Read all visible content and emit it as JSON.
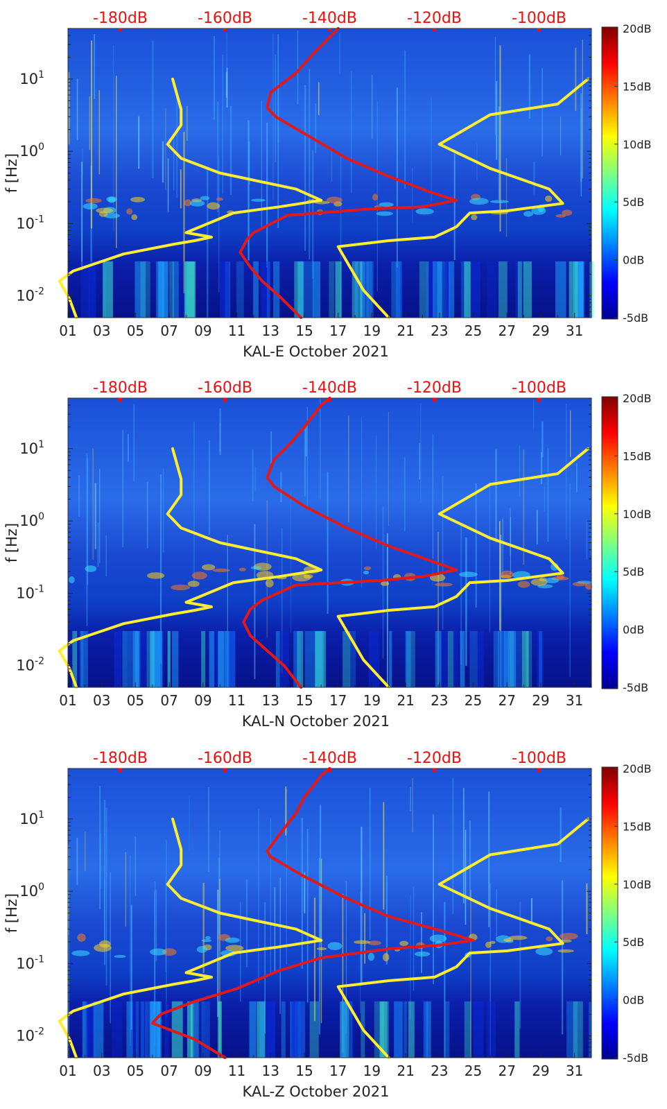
{
  "figure": {
    "y_label": "f [Hz]",
    "colorbar": {
      "labels": [
        "20dB",
        "15dB",
        "10dB",
        "5dB",
        "0dB",
        "-5dB"
      ],
      "range_db": [
        -5,
        20
      ]
    },
    "top_db_labels": [
      "-180dB",
      "-160dB",
      "-140dB",
      "-120dB",
      "-100dB"
    ],
    "x_tick_labels": [
      "01",
      "03",
      "05",
      "07",
      "09",
      "11",
      "13",
      "15",
      "17",
      "19",
      "21",
      "23",
      "25",
      "27",
      "29",
      "31"
    ],
    "y_tick_labels": [
      "10^1",
      "10^0",
      "10^-1",
      "10^-2"
    ]
  },
  "chart_data": [
    {
      "type": "heatmap",
      "title": "KAL-E October 2021",
      "xlabel": "KAL-E October 2021",
      "ylabel": "f [Hz]",
      "xlim_days": [
        1,
        32
      ],
      "ylim_hz": [
        0.005,
        50
      ],
      "yscale": "log",
      "top_axis_db": [
        -180,
        -160,
        -140,
        -120,
        -100
      ],
      "colorbar_db": [
        -5,
        20
      ],
      "overlays": [
        {
          "name": "low-noise-model",
          "color": "#ffee30",
          "points": [
            [
              1.5,
              0.005
            ],
            [
              1.1,
              0.009
            ],
            [
              0.5,
              0.016
            ],
            [
              1.3,
              0.022
            ],
            [
              4.3,
              0.038
            ],
            [
              7.3,
              0.052
            ],
            [
              8.5,
              0.058
            ],
            [
              9.5,
              0.065
            ],
            [
              8.0,
              0.075
            ],
            [
              10.8,
              0.14
            ],
            [
              13.5,
              0.17
            ],
            [
              16.0,
              0.21
            ],
            [
              14.5,
              0.3
            ],
            [
              10.0,
              0.5
            ],
            [
              7.7,
              0.8
            ],
            [
              6.9,
              1.25
            ],
            [
              7.7,
              2.3
            ],
            [
              7.7,
              3.8
            ],
            [
              7.2,
              10.0
            ]
          ]
        },
        {
          "name": "high-noise-model",
          "color": "#ffee30",
          "points": [
            [
              20.0,
              0.005
            ],
            [
              18.5,
              0.012
            ],
            [
              17.0,
              0.048
            ],
            [
              20.0,
              0.058
            ],
            [
              22.7,
              0.065
            ],
            [
              24.0,
              0.09
            ],
            [
              24.8,
              0.14
            ],
            [
              27.0,
              0.15
            ],
            [
              30.3,
              0.19
            ],
            [
              29.5,
              0.3
            ],
            [
              26.0,
              0.58
            ],
            [
              23.0,
              1.25
            ],
            [
              26.0,
              3.2
            ],
            [
              30.0,
              4.5
            ],
            [
              31.8,
              10.0
            ]
          ]
        },
        {
          "name": "median-noise-level",
          "color": "#e01a1a",
          "points": [
            [
              14.8,
              0.005
            ],
            [
              13.5,
              0.01
            ],
            [
              12.5,
              0.016
            ],
            [
              11.8,
              0.025
            ],
            [
              11.2,
              0.04
            ],
            [
              11.6,
              0.06
            ],
            [
              12.0,
              0.075
            ],
            [
              14.0,
              0.13
            ],
            [
              19.0,
              0.16
            ],
            [
              22.0,
              0.17
            ],
            [
              24.0,
              0.21
            ],
            [
              22.5,
              0.27
            ],
            [
              20.0,
              0.45
            ],
            [
              17.5,
              0.8
            ],
            [
              15.3,
              1.6
            ],
            [
              13.3,
              3.0
            ],
            [
              12.8,
              4.0
            ],
            [
              13.0,
              6.5
            ],
            [
              14.5,
              12.0
            ],
            [
              15.5,
              22.0
            ],
            [
              16.6,
              40.0
            ],
            [
              17.0,
              50.0
            ]
          ]
        }
      ]
    },
    {
      "type": "heatmap",
      "title": "KAL-N October 2021",
      "xlabel": "KAL-N October 2021",
      "ylabel": "f [Hz]",
      "xlim_days": [
        1,
        32
      ],
      "ylim_hz": [
        0.005,
        50
      ],
      "yscale": "log",
      "top_axis_db": [
        -180,
        -160,
        -140,
        -120,
        -100
      ],
      "colorbar_db": [
        -5,
        20
      ],
      "overlays": [
        {
          "name": "low-noise-model",
          "color": "#ffee30",
          "points": [
            [
              1.5,
              0.005
            ],
            [
              1.1,
              0.009
            ],
            [
              0.5,
              0.016
            ],
            [
              1.3,
              0.022
            ],
            [
              4.3,
              0.038
            ],
            [
              7.3,
              0.052
            ],
            [
              8.5,
              0.058
            ],
            [
              9.5,
              0.065
            ],
            [
              8.0,
              0.075
            ],
            [
              10.8,
              0.14
            ],
            [
              13.5,
              0.17
            ],
            [
              16.0,
              0.21
            ],
            [
              14.5,
              0.3
            ],
            [
              10.0,
              0.5
            ],
            [
              7.7,
              0.8
            ],
            [
              6.9,
              1.25
            ],
            [
              7.7,
              2.3
            ],
            [
              7.7,
              3.8
            ],
            [
              7.2,
              10.0
            ]
          ]
        },
        {
          "name": "high-noise-model",
          "color": "#ffee30",
          "points": [
            [
              20.0,
              0.005
            ],
            [
              18.5,
              0.012
            ],
            [
              17.0,
              0.048
            ],
            [
              20.0,
              0.058
            ],
            [
              22.7,
              0.065
            ],
            [
              24.0,
              0.09
            ],
            [
              24.8,
              0.14
            ],
            [
              27.0,
              0.15
            ],
            [
              30.3,
              0.19
            ],
            [
              29.5,
              0.3
            ],
            [
              26.0,
              0.58
            ],
            [
              23.0,
              1.25
            ],
            [
              26.0,
              3.2
            ],
            [
              30.0,
              4.5
            ],
            [
              31.8,
              10.0
            ]
          ]
        },
        {
          "name": "median-noise-level",
          "color": "#e01a1a",
          "points": [
            [
              14.8,
              0.005
            ],
            [
              13.8,
              0.01
            ],
            [
              12.8,
              0.016
            ],
            [
              11.8,
              0.026
            ],
            [
              11.4,
              0.04
            ],
            [
              11.8,
              0.06
            ],
            [
              12.5,
              0.08
            ],
            [
              14.5,
              0.13
            ],
            [
              19.5,
              0.15
            ],
            [
              22.0,
              0.17
            ],
            [
              24.0,
              0.21
            ],
            [
              22.5,
              0.28
            ],
            [
              20.0,
              0.45
            ],
            [
              17.5,
              0.8
            ],
            [
              15.0,
              1.6
            ],
            [
              13.2,
              3.0
            ],
            [
              12.8,
              4.0
            ],
            [
              13.2,
              7.0
            ],
            [
              14.2,
              12.0
            ],
            [
              15.0,
              20.0
            ],
            [
              16.0,
              40.0
            ],
            [
              16.5,
              50.0
            ]
          ]
        }
      ]
    },
    {
      "type": "heatmap",
      "title": "KAL-Z October 2021",
      "xlabel": "KAL-Z October 2021",
      "ylabel": "f [Hz]",
      "xlim_days": [
        1,
        32
      ],
      "ylim_hz": [
        0.005,
        50
      ],
      "yscale": "log",
      "top_axis_db": [
        -180,
        -160,
        -140,
        -120,
        -100
      ],
      "colorbar_db": [
        -5,
        20
      ],
      "overlays": [
        {
          "name": "low-noise-model",
          "color": "#ffee30",
          "points": [
            [
              1.5,
              0.005
            ],
            [
              1.1,
              0.009
            ],
            [
              0.5,
              0.016
            ],
            [
              1.3,
              0.022
            ],
            [
              4.3,
              0.038
            ],
            [
              7.3,
              0.052
            ],
            [
              8.5,
              0.058
            ],
            [
              9.5,
              0.065
            ],
            [
              8.0,
              0.075
            ],
            [
              10.8,
              0.14
            ],
            [
              13.5,
              0.17
            ],
            [
              16.0,
              0.21
            ],
            [
              14.5,
              0.3
            ],
            [
              10.0,
              0.5
            ],
            [
              7.7,
              0.8
            ],
            [
              6.9,
              1.25
            ],
            [
              7.7,
              2.3
            ],
            [
              7.7,
              3.8
            ],
            [
              7.2,
              10.0
            ]
          ]
        },
        {
          "name": "high-noise-model",
          "color": "#ffee30",
          "points": [
            [
              20.0,
              0.005
            ],
            [
              18.5,
              0.012
            ],
            [
              17.0,
              0.048
            ],
            [
              20.0,
              0.058
            ],
            [
              22.7,
              0.065
            ],
            [
              24.0,
              0.09
            ],
            [
              24.8,
              0.14
            ],
            [
              27.0,
              0.15
            ],
            [
              30.3,
              0.19
            ],
            [
              29.5,
              0.3
            ],
            [
              26.0,
              0.58
            ],
            [
              23.0,
              1.25
            ],
            [
              26.0,
              3.2
            ],
            [
              30.0,
              4.5
            ],
            [
              31.8,
              10.0
            ]
          ]
        },
        {
          "name": "median-noise-level",
          "color": "#e01a1a",
          "points": [
            [
              10.3,
              0.005
            ],
            [
              8.5,
              0.009
            ],
            [
              6.0,
              0.015
            ],
            [
              6.5,
              0.02
            ],
            [
              8.5,
              0.03
            ],
            [
              11.0,
              0.045
            ],
            [
              13.5,
              0.08
            ],
            [
              16.0,
              0.12
            ],
            [
              20.0,
              0.16
            ],
            [
              23.0,
              0.18
            ],
            [
              25.0,
              0.21
            ],
            [
              23.0,
              0.29
            ],
            [
              20.0,
              0.45
            ],
            [
              17.5,
              0.8
            ],
            [
              15.0,
              1.6
            ],
            [
              13.0,
              3.0
            ],
            [
              12.8,
              3.6
            ],
            [
              13.5,
              6.0
            ],
            [
              14.5,
              12.0
            ],
            [
              15.0,
              20.0
            ],
            [
              16.0,
              40.0
            ],
            [
              16.5,
              50.0
            ]
          ]
        }
      ]
    }
  ]
}
